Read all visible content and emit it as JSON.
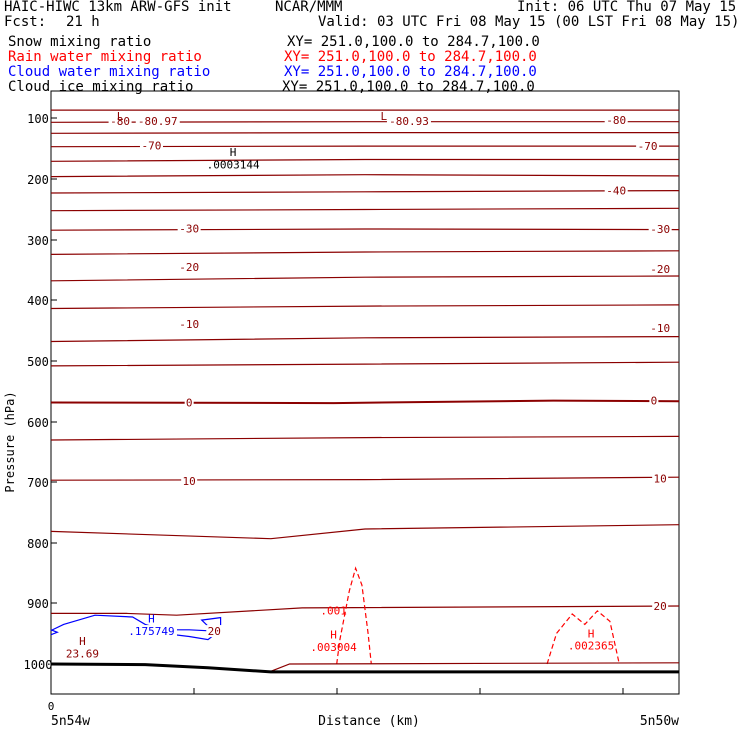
{
  "header": {
    "title": "HAIC-HIWC 13km ARW-GFS init",
    "center": "NCAR/MMM",
    "init": "Init: 06 UTC Thu 07 May 15",
    "fcst": "Fcst:",
    "fcst_value": "21 h",
    "valid": "Valid: 03 UTC Fri 08 May 15 (00 LST Fri 08 May 15)"
  },
  "fields": [
    {
      "name": "Snow mixing ratio",
      "xy": "XY= 251.0,100.0 to 284.7,100.0",
      "color": "#000000"
    },
    {
      "name": "Rain water mixing ratio",
      "xy": "XY= 251.0,100.0 to 284.7,100.0",
      "color": "#ff0000"
    },
    {
      "name": "Cloud water mixing ratio",
      "xy": "XY= 251.0,100.0 to 284.7,100.0",
      "color": "#0000ff"
    },
    {
      "name": "Cloud ice mixing ratio",
      "xy": "XY= 251.0,100.0 to 284.7,100.0",
      "color": "#000000"
    }
  ],
  "chart_data": {
    "type": "line",
    "ylabel": "Pressure (hPa)",
    "xlabel": "Distance (km)",
    "x_tick_labels": [
      "0"
    ],
    "x_left_label": "5n54w",
    "x_right_label": "5n50w",
    "y_ticks": [
      100,
      200,
      300,
      400,
      500,
      600,
      700,
      800,
      900,
      1000
    ],
    "ylim": [
      60,
      1050
    ],
    "xlim": [
      0,
      100
    ],
    "colors": {
      "temperature": "#8b0000",
      "rain": "#ff0000",
      "cloud_water": "#0000ff",
      "terrain": "#000000"
    },
    "temperature_contours": [
      {
        "points": [
          [
            0,
            87
          ],
          [
            50,
            87
          ],
          [
            100,
            87
          ]
        ]
      },
      {
        "points": [
          [
            0,
            107
          ],
          [
            50,
            106
          ],
          [
            100,
            106
          ]
        ]
      },
      {
        "points": [
          [
            0,
            125
          ],
          [
            50,
            124
          ],
          [
            100,
            124
          ]
        ]
      },
      {
        "points": [
          [
            0,
            147
          ],
          [
            50,
            146
          ],
          [
            100,
            146
          ]
        ]
      },
      {
        "points": [
          [
            0,
            171
          ],
          [
            50,
            168
          ],
          [
            100,
            168
          ]
        ]
      },
      {
        "points": [
          [
            0,
            196
          ],
          [
            50,
            193
          ],
          [
            100,
            195
          ]
        ]
      },
      {
        "points": [
          [
            0,
            223
          ],
          [
            50,
            221
          ],
          [
            100,
            219
          ]
        ]
      },
      {
        "points": [
          [
            0,
            252
          ],
          [
            50,
            250
          ],
          [
            100,
            248
          ]
        ]
      },
      {
        "points": [
          [
            0,
            284
          ],
          [
            50,
            282
          ],
          [
            100,
            283
          ]
        ]
      },
      {
        "points": [
          [
            0,
            324
          ],
          [
            50,
            320
          ],
          [
            100,
            318
          ]
        ]
      },
      {
        "points": [
          [
            0,
            368
          ],
          [
            50,
            362
          ],
          [
            100,
            360
          ]
        ]
      },
      {
        "points": [
          [
            0,
            414
          ],
          [
            50,
            410
          ],
          [
            100,
            408
          ]
        ]
      },
      {
        "points": [
          [
            0,
            468
          ],
          [
            50,
            462
          ],
          [
            100,
            460
          ]
        ]
      },
      {
        "points": [
          [
            0,
            508
          ],
          [
            50,
            505
          ],
          [
            100,
            502
          ]
        ]
      },
      {
        "points": [
          [
            0,
            568
          ],
          [
            45,
            569
          ],
          [
            80,
            565
          ],
          [
            100,
            566
          ]
        ]
      },
      {
        "points": [
          [
            0,
            630
          ],
          [
            50,
            626
          ],
          [
            100,
            624
          ]
        ]
      },
      {
        "points": [
          [
            0,
            697
          ],
          [
            50,
            696
          ],
          [
            100,
            692
          ]
        ]
      },
      {
        "points": [
          [
            0,
            781
          ],
          [
            35,
            793
          ],
          [
            50,
            777
          ],
          [
            100,
            770
          ]
        ]
      },
      {
        "points": [
          [
            0,
            917
          ],
          [
            12,
            917
          ],
          [
            20,
            920
          ],
          [
            40,
            908
          ],
          [
            100,
            905
          ]
        ]
      }
    ],
    "temperature_labels": [
      {
        "x": 11,
        "y": 105,
        "text": "-80"
      },
      {
        "x": 17,
        "y": 105,
        "text": "-80.97"
      },
      {
        "x": 57,
        "y": 105,
        "text": "-80.93"
      },
      {
        "x": 90,
        "y": 103,
        "text": "-80"
      },
      {
        "x": 16,
        "y": 145,
        "text": "-70"
      },
      {
        "x": 95,
        "y": 146,
        "text": "-70"
      },
      {
        "x": 90,
        "y": 219,
        "text": "-40"
      },
      {
        "x": 22,
        "y": 281,
        "text": "-30"
      },
      {
        "x": 97,
        "y": 282,
        "text": "-30"
      },
      {
        "x": 22,
        "y": 345,
        "text": "-20"
      },
      {
        "x": 97,
        "y": 348,
        "text": "-20"
      },
      {
        "x": 22,
        "y": 439,
        "text": "-10"
      },
      {
        "x": 97,
        "y": 446,
        "text": "-10"
      },
      {
        "x": 22,
        "y": 568,
        "text": "0"
      },
      {
        "x": 96,
        "y": 565,
        "text": "0"
      },
      {
        "x": 22,
        "y": 698,
        "text": "10"
      },
      {
        "x": 97,
        "y": 694,
        "text": "10"
      },
      {
        "x": 97,
        "y": 905,
        "text": "20"
      },
      {
        "x": 26,
        "y": 946,
        "text": "20"
      }
    ],
    "rain_contours": [
      {
        "points": [
          [
            45.5,
            1000
          ],
          [
            46,
            960
          ],
          [
            47.5,
            880
          ],
          [
            48.5,
            842
          ],
          [
            49.5,
            870
          ],
          [
            50.5,
            950
          ],
          [
            51,
            1000
          ]
        ]
      },
      {
        "points": [
          [
            79,
            1000
          ],
          [
            80.5,
            950
          ],
          [
            83,
            918
          ],
          [
            85,
            935
          ],
          [
            87,
            913
          ],
          [
            89,
            930
          ],
          [
            90.5,
            1000
          ]
        ]
      }
    ],
    "cloud_water_contours": [
      {
        "points": [
          [
            0,
            945
          ],
          [
            2,
            935
          ],
          [
            7,
            920
          ],
          [
            13,
            923
          ],
          [
            15,
            935
          ],
          [
            18,
            944
          ],
          [
            22,
            944
          ],
          [
            26,
            946
          ],
          [
            25,
            938
          ],
          [
            24,
            928
          ],
          [
            27,
            924
          ],
          [
            27,
            944
          ],
          [
            25,
            960
          ],
          [
            22,
            955
          ],
          [
            18,
            950
          ],
          [
            14,
            945
          ]
        ]
      },
      {
        "points": [
          [
            0,
            944
          ],
          [
            1,
            948
          ],
          [
            0,
            952
          ]
        ]
      }
    ],
    "cloud_water_label": {
      "x": 16,
      "y": 946,
      "text": ".175749"
    },
    "annotations": [
      {
        "x": 11,
        "y": 97,
        "text": "L"
      },
      {
        "x": 53,
        "y": 97,
        "text": "L"
      },
      {
        "x": 29,
        "y": 156,
        "text": "H"
      },
      {
        "x": 29,
        "y": 176,
        "text": ".0003144"
      },
      {
        "x": 16,
        "y": 925,
        "text": "H"
      },
      {
        "x": 45,
        "y": 912,
        "text": ".001"
      },
      {
        "x": 45,
        "y": 952,
        "text": "H"
      },
      {
        "x": 45,
        "y": 972,
        "text": ".003004"
      },
      {
        "x": 86,
        "y": 950,
        "text": "H"
      },
      {
        "x": 86,
        "y": 970,
        "text": ".002365"
      },
      {
        "x": 5,
        "y": 962,
        "text": "H"
      },
      {
        "x": 5,
        "y": 983,
        "text": "23.69"
      }
    ],
    "terrain": {
      "points": [
        [
          0,
          1000
        ],
        [
          15,
          1001
        ],
        [
          25,
          1006
        ],
        [
          35,
          1013
        ],
        [
          40,
          1013
        ],
        [
          100,
          1013
        ]
      ]
    },
    "terrain_dark_red": {
      "points": [
        [
          35,
          1012
        ],
        [
          38,
          1000
        ],
        [
          100,
          998
        ]
      ]
    }
  }
}
